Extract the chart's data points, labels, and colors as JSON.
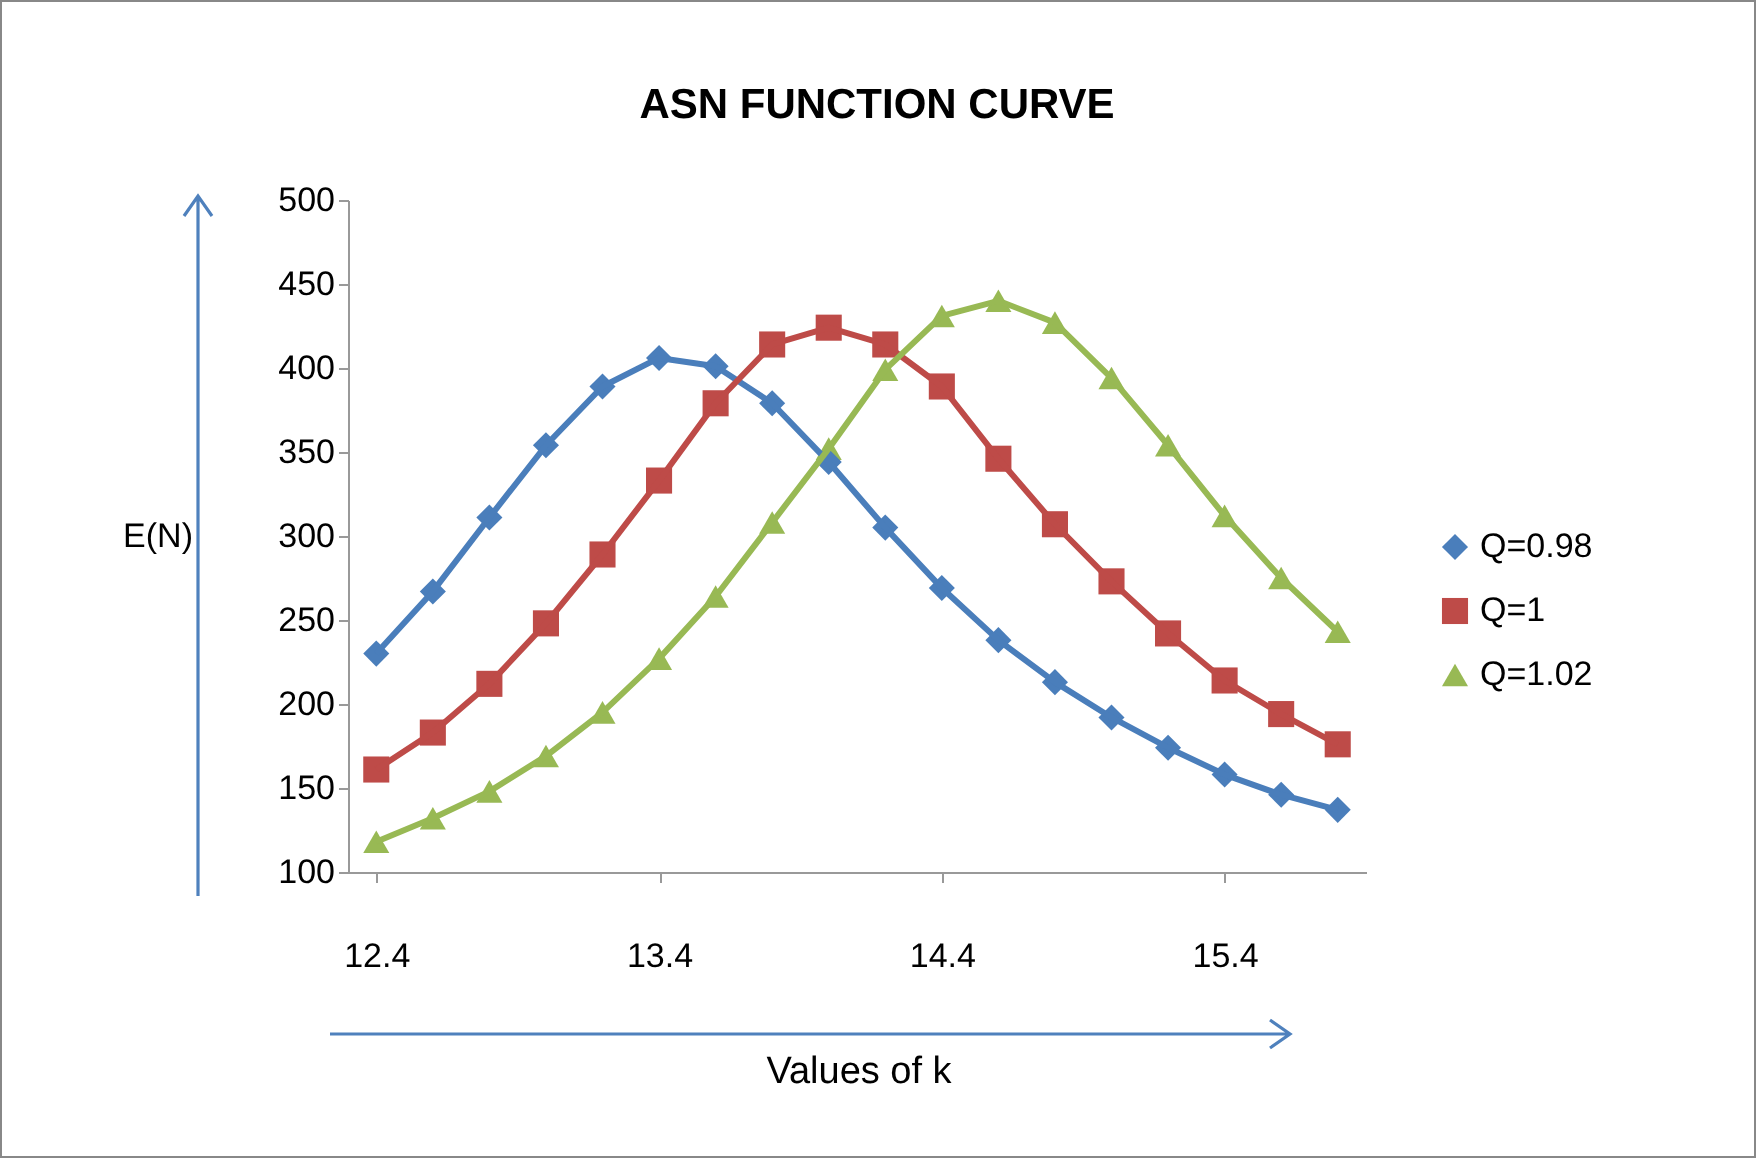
{
  "chart_data": {
    "type": "line",
    "title": "ASN FUNCTION CURVE",
    "xlabel": "Values of k",
    "ylabel": "E(N)",
    "x": [
      12.4,
      12.6,
      12.8,
      13.0,
      13.2,
      13.4,
      13.6,
      13.8,
      14.0,
      14.2,
      14.4,
      14.6,
      14.8,
      15.0,
      15.2,
      15.4,
      15.6,
      15.8
    ],
    "xlim": [
      12.3,
      15.9
    ],
    "xticks": [
      12.4,
      13.4,
      14.4,
      15.4
    ],
    "ylim": [
      100,
      500
    ],
    "yticks": [
      100,
      150,
      200,
      250,
      300,
      350,
      400,
      450,
      500
    ],
    "grid": false,
    "legend": "right",
    "series": [
      {
        "name": "Q=0.98",
        "color": "#4a7ebb",
        "marker": "diamond",
        "values": [
          230,
          267,
          311,
          354,
          389,
          406,
          401,
          379,
          344,
          305,
          269,
          238,
          213,
          192,
          174,
          158,
          146,
          137
        ]
      },
      {
        "name": "Q=1",
        "color": "#be4b48",
        "marker": "square",
        "values": [
          161,
          183,
          212,
          248,
          289,
          333,
          379,
          414,
          424,
          414,
          389,
          346,
          307,
          273,
          242,
          214,
          194,
          176
        ]
      },
      {
        "name": "Q=1.02",
        "color": "#98b954",
        "marker": "triangle",
        "values": [
          118,
          132,
          148,
          169,
          195,
          227,
          264,
          308,
          352,
          399,
          431,
          440,
          427,
          394,
          354,
          312,
          275,
          243
        ]
      }
    ]
  }
}
